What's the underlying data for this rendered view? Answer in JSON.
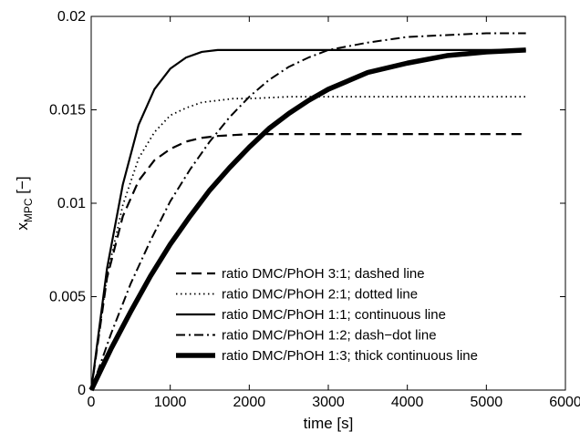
{
  "chart_data": {
    "type": "line",
    "xlabel": "time [s]",
    "ylabel_main": "x",
    "ylabel_sub": "MPC",
    "ylabel_unit": " [−]",
    "xlim": [
      0,
      6000
    ],
    "ylim": [
      0,
      0.02
    ],
    "xticks": [
      0,
      1000,
      2000,
      3000,
      4000,
      5000,
      6000
    ],
    "xtick_labels": [
      "0",
      "1000",
      "2000",
      "3000",
      "4000",
      "5000",
      "6000"
    ],
    "yticks": [
      0,
      0.005,
      0.01,
      0.015,
      0.02
    ],
    "ytick_labels": [
      "0",
      "0.005",
      "0.01",
      "0.015",
      "0.02"
    ],
    "grid": false,
    "legend_position": "bottom-right",
    "series": [
      {
        "name": "ratio DMC/PhOH 3:1; dashed line",
        "style": "dashed",
        "x": [
          0,
          200,
          400,
          600,
          800,
          1000,
          1200,
          1400,
          1600,
          1800,
          2000,
          2500,
          3000,
          4000,
          5000,
          5500
        ],
        "y": [
          0,
          0.006,
          0.0093,
          0.0112,
          0.0123,
          0.0129,
          0.0133,
          0.0135,
          0.0136,
          0.01365,
          0.0137,
          0.0137,
          0.0137,
          0.0137,
          0.0137,
          0.0137
        ]
      },
      {
        "name": "ratio DMC/PhOH 2:1; dotted line",
        "style": "dotted",
        "x": [
          0,
          200,
          400,
          600,
          800,
          1000,
          1200,
          1400,
          1600,
          1800,
          2000,
          2500,
          3000,
          4000,
          5000,
          5500
        ],
        "y": [
          0,
          0.0061,
          0.0099,
          0.0124,
          0.0138,
          0.0147,
          0.0151,
          0.0154,
          0.0155,
          0.0156,
          0.0156,
          0.0157,
          0.0157,
          0.0157,
          0.0157,
          0.0157
        ]
      },
      {
        "name": "ratio DMC/PhOH 1:1; continuous line",
        "style": "solid",
        "x": [
          0,
          200,
          400,
          600,
          800,
          1000,
          1200,
          1400,
          1600,
          1800,
          2000,
          2500,
          3000,
          4000,
          5000,
          5500
        ],
        "y": [
          0,
          0.0065,
          0.011,
          0.0142,
          0.0161,
          0.0172,
          0.0178,
          0.0181,
          0.0182,
          0.0182,
          0.0182,
          0.0182,
          0.0182,
          0.0182,
          0.0182,
          0.0182
        ]
      },
      {
        "name": "ratio DMC/PhOH 1:2; dash−dot line",
        "style": "dashdot",
        "x": [
          0,
          250,
          500,
          750,
          1000,
          1250,
          1500,
          1750,
          2000,
          2250,
          2500,
          2750,
          3000,
          3500,
          4000,
          4500,
          5000,
          5500
        ],
        "y": [
          0,
          0.003,
          0.0057,
          0.008,
          0.0101,
          0.0118,
          0.0133,
          0.0146,
          0.0157,
          0.0166,
          0.0173,
          0.0178,
          0.0182,
          0.0186,
          0.0189,
          0.019,
          0.0191,
          0.0191
        ]
      },
      {
        "name": "ratio DMC/PhOH 1:3; thick continuous line",
        "style": "thick",
        "x": [
          0,
          250,
          500,
          750,
          1000,
          1250,
          1500,
          1750,
          2000,
          2250,
          2500,
          2750,
          3000,
          3500,
          4000,
          4500,
          5000,
          5500
        ],
        "y": [
          0,
          0.0022,
          0.0042,
          0.0061,
          0.0078,
          0.0093,
          0.0107,
          0.0119,
          0.013,
          0.014,
          0.0148,
          0.0155,
          0.0161,
          0.017,
          0.0175,
          0.0179,
          0.0181,
          0.0182
        ]
      }
    ]
  }
}
